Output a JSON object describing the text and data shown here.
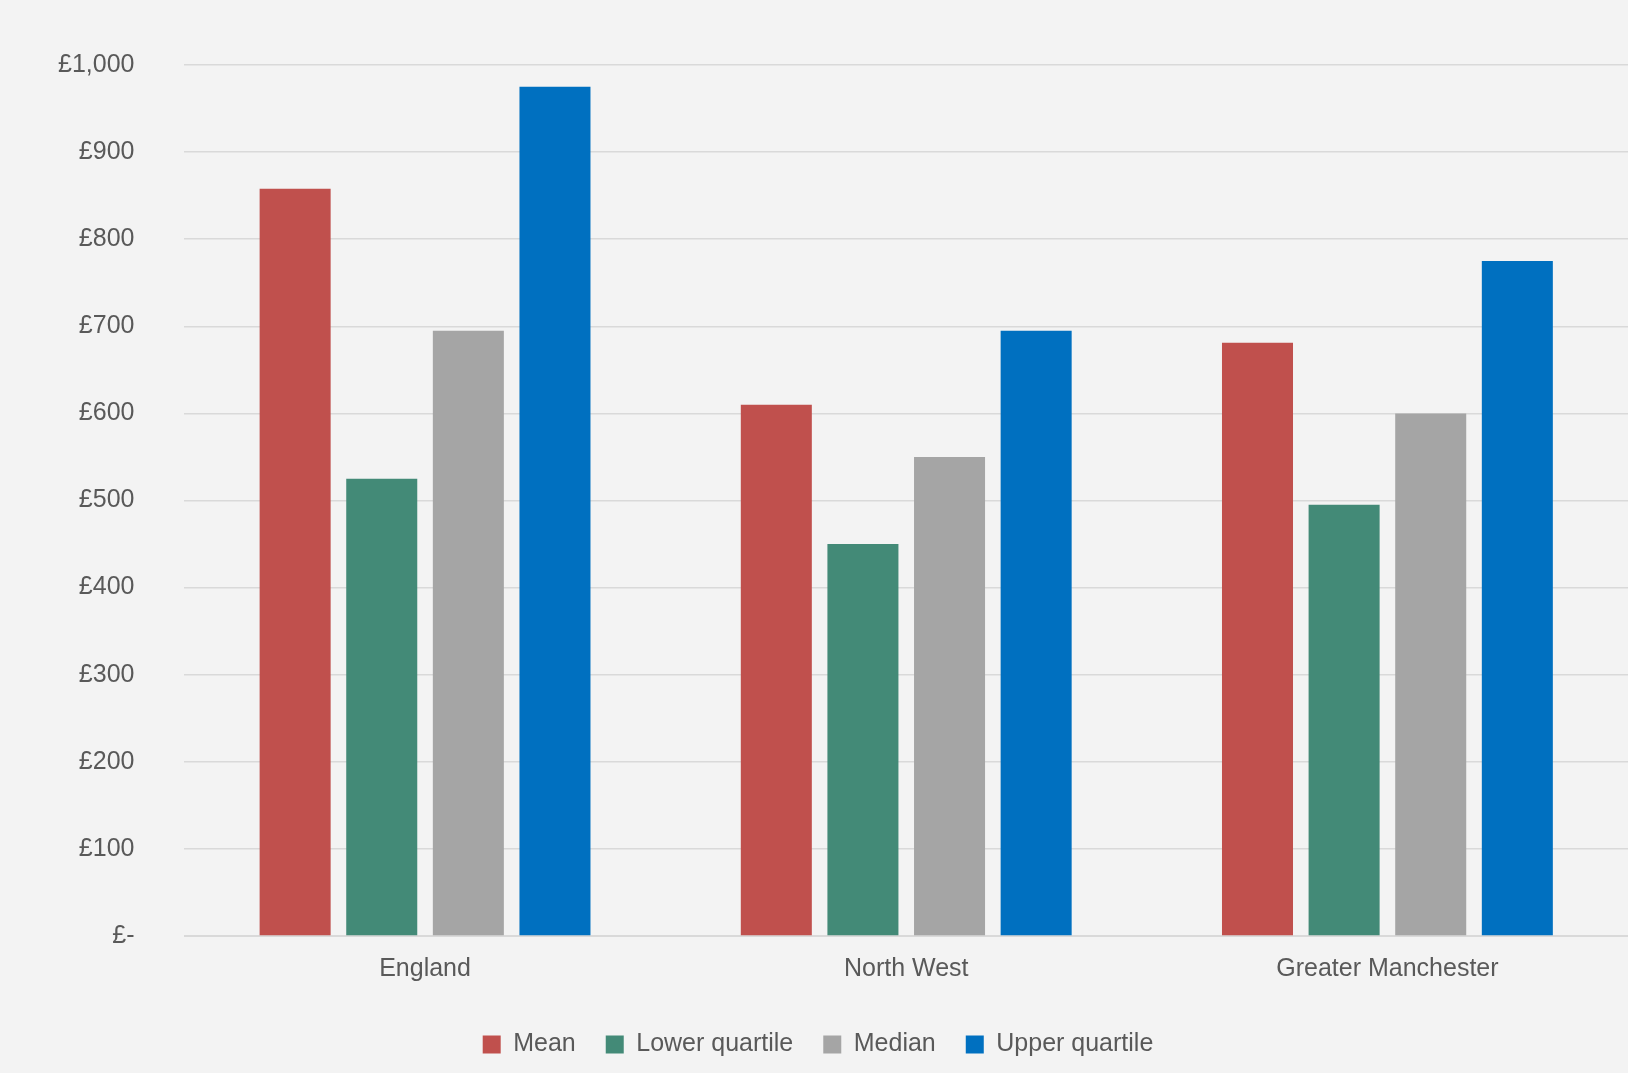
{
  "chart_data": {
    "type": "bar",
    "categories": [
      "England",
      "North West",
      "Greater Manchester"
    ],
    "series": [
      {
        "name": "Mean",
        "color": "#c0504d",
        "values": [
          858,
          610,
          681
        ]
      },
      {
        "name": "Lower quartile",
        "color": "#438a77",
        "values": [
          525,
          450,
          495
        ]
      },
      {
        "name": "Median",
        "color": "#a5a5a5",
        "values": [
          695,
          550,
          600
        ]
      },
      {
        "name": "Upper quartile",
        "color": "#0070c0",
        "values": [
          975,
          695,
          775
        ]
      }
    ],
    "ylim": [
      0,
      1000
    ],
    "yticks": [
      {
        "value": 0,
        "label": "£-"
      },
      {
        "value": 100,
        "label": "£100"
      },
      {
        "value": 200,
        "label": "£200"
      },
      {
        "value": 300,
        "label": "£300"
      },
      {
        "value": 400,
        "label": "£400"
      },
      {
        "value": 500,
        "label": "£500"
      },
      {
        "value": 600,
        "label": "£600"
      },
      {
        "value": 700,
        "label": "£700"
      },
      {
        "value": 800,
        "label": "£800"
      },
      {
        "value": 900,
        "label": "£900"
      },
      {
        "value": 1000,
        "label": "£1,000"
      }
    ],
    "grid": "y",
    "legend": "bottom"
  }
}
